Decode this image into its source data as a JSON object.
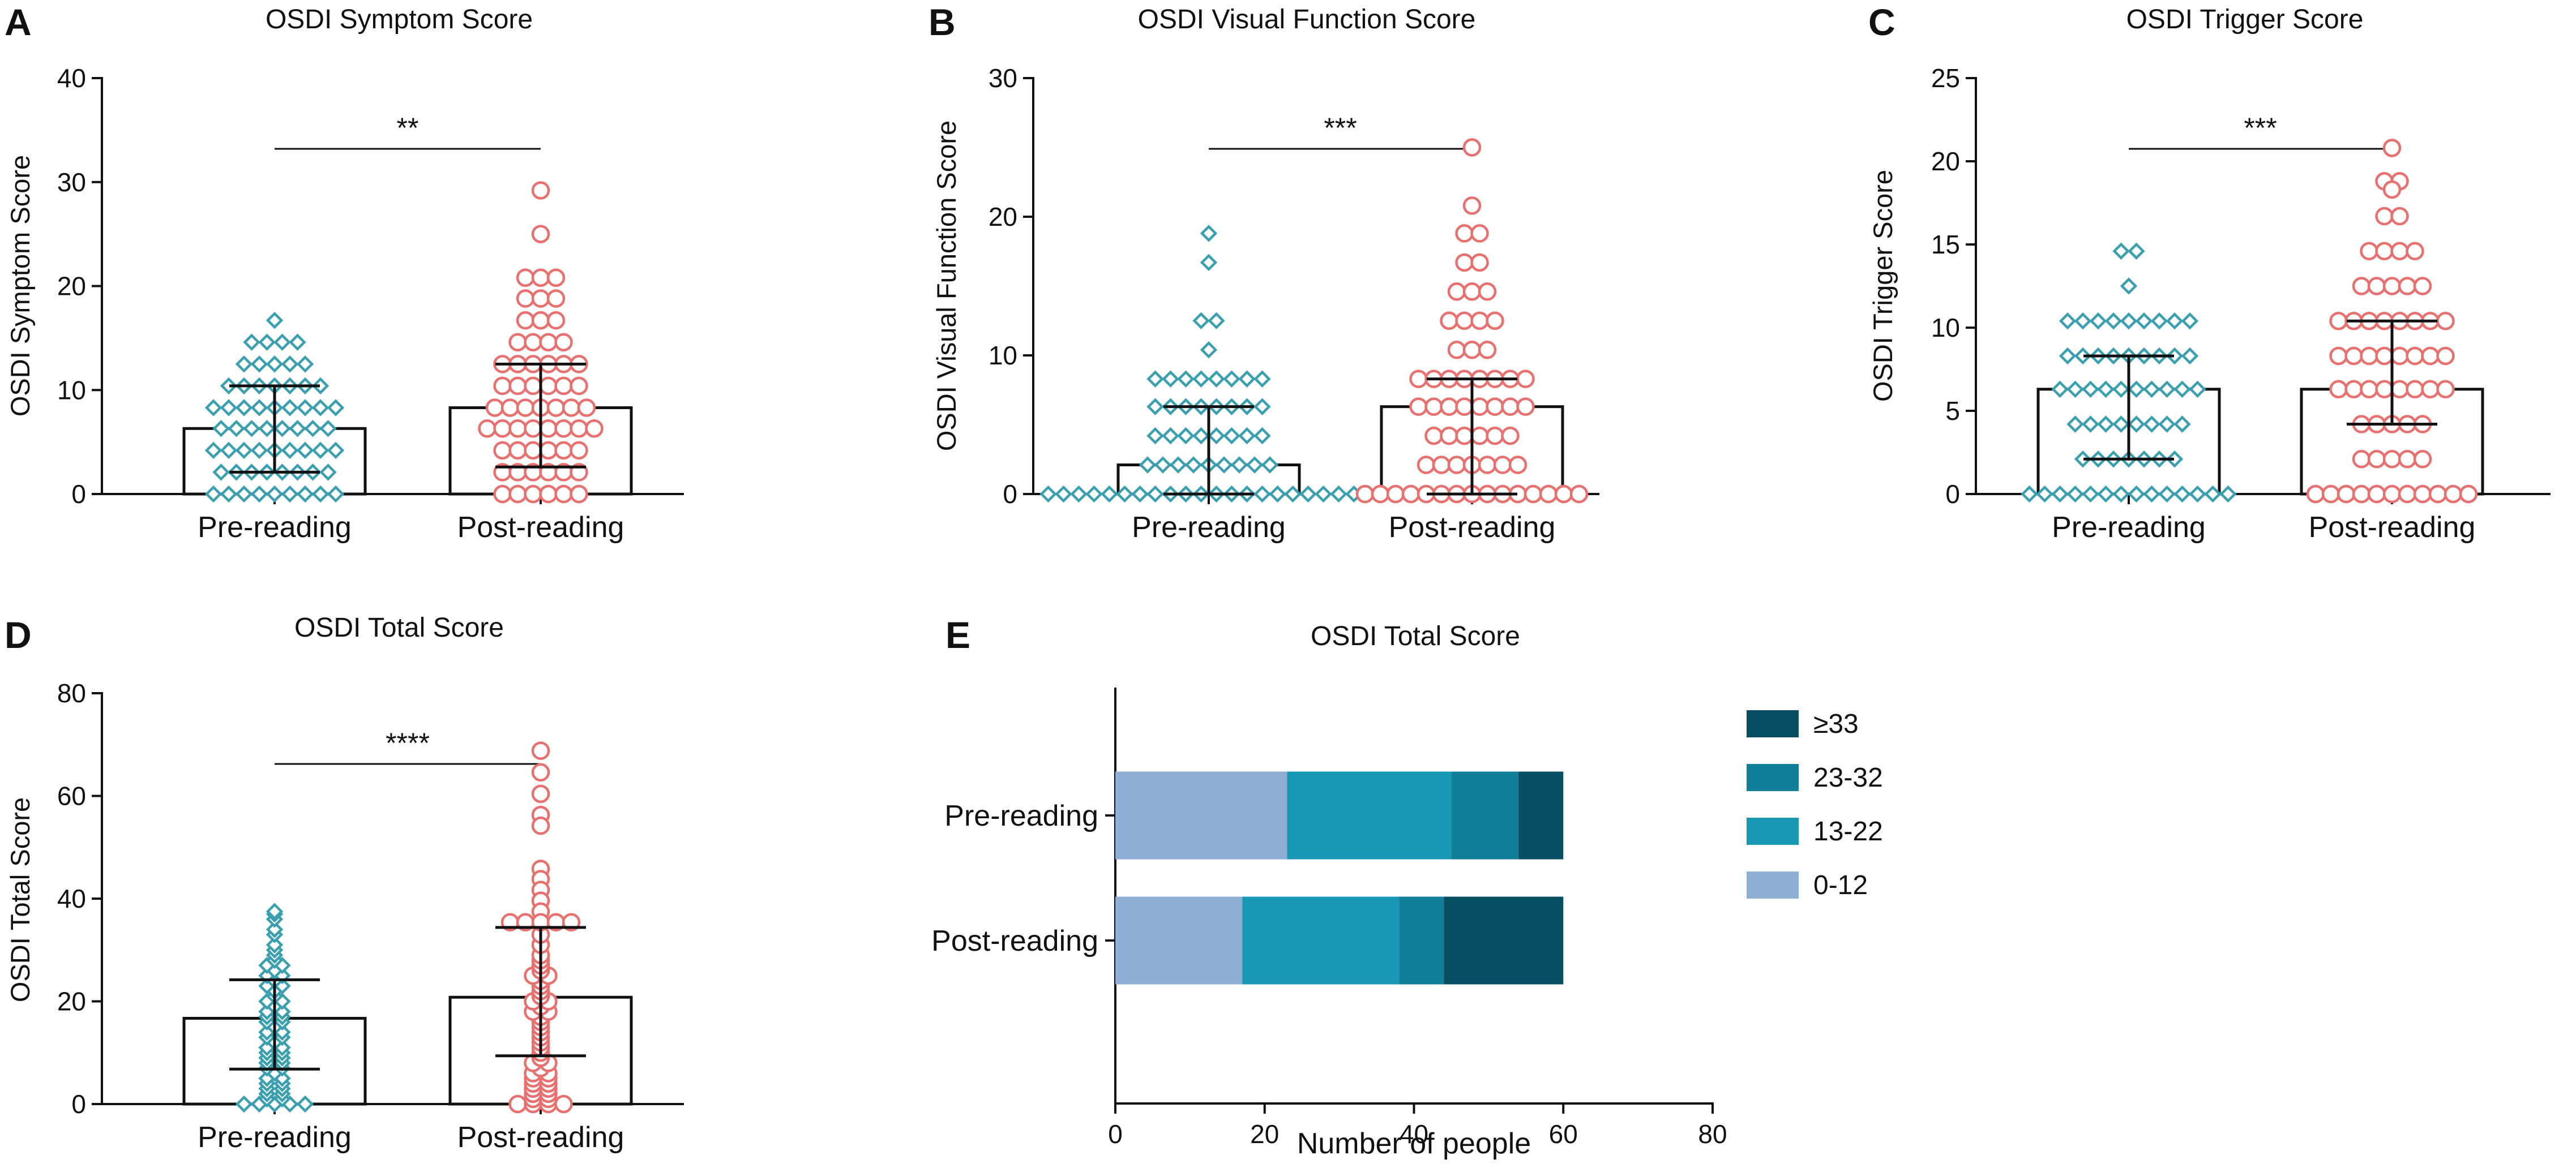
{
  "colors": {
    "pre": "#3aa0b0",
    "post": "#e8706f",
    "axis": "#111111",
    "band_0_12": "#8eaed4",
    "band_13_22": "#1898b5",
    "band_23_32": "#127f98",
    "band_33": "#064f62"
  },
  "panels": [
    {
      "letter": "A",
      "title": "OSDI Symptom Score",
      "ylabel": "OSDI Symptom Score",
      "significance": "**"
    },
    {
      "letter": "B",
      "title": "OSDI Visual Function Score",
      "ylabel": "OSDI Visual Function Score",
      "significance": "***"
    },
    {
      "letter": "C",
      "title": "OSDI Trigger Score",
      "ylabel": "OSDI Trigger Score",
      "significance": "***"
    },
    {
      "letter": "D",
      "title": "OSDI Total Score",
      "ylabel": "OSDI Total Score",
      "significance": "****"
    },
    {
      "letter": "E",
      "title": "OSDI Total Score",
      "xlabel": "Number of people"
    }
  ],
  "chart_data": [
    {
      "type": "bar",
      "subtype": "scatter-dot-bar with median and interquartile range",
      "title": "OSDI Symptom Score",
      "ylabel": "OSDI Symptom Score",
      "ylim": [
        0,
        40
      ],
      "yticks": [
        "0",
        "10",
        "20",
        "30",
        "40"
      ],
      "categories": [
        "Pre-reading",
        "Post-reading"
      ],
      "significance": "**",
      "series": [
        {
          "name": "Pre-reading",
          "marker": "diamond",
          "median": 6.3,
          "q1": 2.1,
          "q3": 10.4,
          "points": [
            16.7,
            14.6,
            14.6,
            14.6,
            14.6,
            12.5,
            12.5,
            12.5,
            12.5,
            12.5,
            10.4,
            10.4,
            10.4,
            10.4,
            10.4,
            10.4,
            10.4,
            8.3,
            8.3,
            8.3,
            8.3,
            8.3,
            8.3,
            8.3,
            8.3,
            8.3,
            6.3,
            6.3,
            6.3,
            6.3,
            6.3,
            6.3,
            6.3,
            6.3,
            4.2,
            4.2,
            4.2,
            4.2,
            4.2,
            4.2,
            4.2,
            4.2,
            4.2,
            2.1,
            2.1,
            2.1,
            2.1,
            2.1,
            2.1,
            2.1,
            2.1,
            0,
            0,
            0,
            0,
            0,
            0,
            0,
            0,
            0
          ]
        },
        {
          "name": "Post-reading",
          "marker": "circle",
          "median": 8.3,
          "q1": 2.6,
          "q3": 12.5,
          "points": [
            29.2,
            25,
            20.8,
            20.8,
            20.8,
            18.8,
            18.8,
            18.8,
            16.7,
            16.7,
            16.7,
            14.6,
            14.6,
            14.6,
            14.6,
            12.5,
            12.5,
            12.5,
            12.5,
            12.5,
            12.5,
            10.4,
            10.4,
            10.4,
            10.4,
            10.4,
            10.4,
            8.3,
            8.3,
            8.3,
            8.3,
            8.3,
            8.3,
            8.3,
            6.3,
            6.3,
            6.3,
            6.3,
            6.3,
            6.3,
            6.3,
            6.3,
            4.2,
            4.2,
            4.2,
            4.2,
            4.2,
            4.2,
            2.1,
            2.1,
            2.1,
            2.1,
            2.1,
            2.1,
            0,
            0,
            0,
            0,
            0,
            0
          ]
        }
      ]
    },
    {
      "type": "bar",
      "subtype": "scatter-dot-bar with median and interquartile range",
      "title": "OSDI Visual Function Score",
      "ylabel": "OSDI Visual Function Score",
      "ylim": [
        0,
        30
      ],
      "yticks": [
        "0",
        "10",
        "20",
        "30"
      ],
      "categories": [
        "Pre-reading",
        "Post-reading"
      ],
      "significance": "***",
      "series": [
        {
          "name": "Pre-reading",
          "marker": "diamond",
          "median": 2.1,
          "q1": 0,
          "q3": 6.3,
          "points": [
            18.8,
            16.7,
            12.5,
            12.5,
            10.4,
            8.3,
            8.3,
            8.3,
            8.3,
            8.3,
            8.3,
            8.3,
            8.3,
            6.3,
            6.3,
            6.3,
            6.3,
            6.3,
            6.3,
            6.3,
            6.3,
            4.2,
            4.2,
            4.2,
            4.2,
            4.2,
            4.2,
            4.2,
            4.2,
            2.1,
            2.1,
            2.1,
            2.1,
            2.1,
            2.1,
            2.1,
            2.1,
            2.1,
            0,
            0,
            0,
            0,
            0,
            0,
            0,
            0,
            0,
            0,
            0,
            0,
            0,
            0,
            0,
            0,
            0,
            0,
            0,
            0,
            0,
            0
          ]
        },
        {
          "name": "Post-reading",
          "marker": "circle",
          "median": 6.3,
          "q1": 0,
          "q3": 8.3,
          "points": [
            25,
            20.8,
            18.8,
            18.8,
            16.7,
            16.7,
            14.6,
            14.6,
            14.6,
            12.5,
            12.5,
            12.5,
            12.5,
            10.4,
            10.4,
            10.4,
            8.3,
            8.3,
            8.3,
            8.3,
            8.3,
            8.3,
            8.3,
            8.3,
            6.3,
            6.3,
            6.3,
            6.3,
            6.3,
            6.3,
            6.3,
            6.3,
            4.2,
            4.2,
            4.2,
            4.2,
            4.2,
            4.2,
            2.1,
            2.1,
            2.1,
            2.1,
            2.1,
            2.1,
            2.1,
            0,
            0,
            0,
            0,
            0,
            0,
            0,
            0,
            0,
            0,
            0,
            0,
            0,
            0,
            0
          ]
        }
      ]
    },
    {
      "type": "bar",
      "subtype": "scatter-dot-bar with median and interquartile range",
      "title": "OSDI Trigger Score",
      "ylabel": "OSDI Trigger Score",
      "ylim": [
        0,
        25
      ],
      "yticks": [
        "0",
        "5",
        "10",
        "15",
        "20",
        "25"
      ],
      "categories": [
        "Pre-reading",
        "Post-reading"
      ],
      "significance": "***",
      "series": [
        {
          "name": "Pre-reading",
          "marker": "diamond",
          "median": 6.3,
          "q1": 2.1,
          "q3": 8.3,
          "points": [
            14.6,
            14.6,
            12.5,
            10.4,
            10.4,
            10.4,
            10.4,
            10.4,
            10.4,
            10.4,
            10.4,
            10.4,
            8.3,
            8.3,
            8.3,
            8.3,
            8.3,
            8.3,
            8.3,
            8.3,
            8.3,
            6.3,
            6.3,
            6.3,
            6.3,
            6.3,
            6.3,
            6.3,
            6.3,
            6.3,
            6.3,
            4.2,
            4.2,
            4.2,
            4.2,
            4.2,
            4.2,
            4.2,
            4.2,
            2.1,
            2.1,
            2.1,
            2.1,
            2.1,
            2.1,
            2.1,
            0,
            0,
            0,
            0,
            0,
            0,
            0,
            0,
            0,
            0,
            0,
            0,
            0,
            0
          ]
        },
        {
          "name": "Post-reading",
          "marker": "circle",
          "median": 6.3,
          "q1": 4.2,
          "q3": 10.4,
          "points": [
            20.8,
            18.8,
            18.8,
            18.3,
            16.7,
            16.7,
            14.6,
            14.6,
            14.6,
            14.6,
            12.5,
            12.5,
            12.5,
            12.5,
            12.5,
            10.4,
            10.4,
            10.4,
            10.4,
            10.4,
            10.4,
            10.4,
            10.4,
            8.3,
            8.3,
            8.3,
            8.3,
            8.3,
            8.3,
            8.3,
            8.3,
            6.3,
            6.3,
            6.3,
            6.3,
            6.3,
            6.3,
            6.3,
            6.3,
            4.2,
            4.2,
            4.2,
            4.2,
            4.2,
            2.1,
            2.1,
            2.1,
            2.1,
            2.1,
            0,
            0,
            0,
            0,
            0,
            0,
            0,
            0,
            0,
            0,
            0
          ]
        }
      ]
    },
    {
      "type": "bar",
      "subtype": "scatter-dot-bar with median and interquartile range",
      "title": "OSDI Total Score",
      "ylabel": "OSDI Total Score",
      "ylim": [
        0,
        80
      ],
      "yticks": [
        "0",
        "20",
        "40",
        "60",
        "80"
      ],
      "categories": [
        "Pre-reading",
        "Post-reading"
      ],
      "significance": "****",
      "series": [
        {
          "name": "Pre-reading",
          "marker": "diamond",
          "median": 16.7,
          "q1": 6.8,
          "q3": 24.2,
          "points": [
            37.5,
            37,
            36,
            34,
            33,
            31,
            30,
            29,
            28,
            27,
            27,
            26,
            25,
            25,
            24,
            23,
            23,
            22,
            21,
            20,
            20,
            19,
            18,
            18,
            17,
            17,
            16,
            16,
            15,
            14,
            14,
            13,
            13,
            12,
            11,
            11,
            10,
            10,
            9,
            9,
            8,
            8,
            7,
            7,
            6,
            5,
            5,
            4,
            4,
            3,
            3,
            2,
            2,
            1,
            1,
            0,
            0,
            0,
            0,
            0
          ]
        },
        {
          "name": "Post-reading",
          "marker": "circle",
          "median": 20.8,
          "q1": 9.4,
          "q3": 34.4,
          "points": [
            68.8,
            64.6,
            60.4,
            56.3,
            54.2,
            45.8,
            43.8,
            41.7,
            39.6,
            37.5,
            35.4,
            35.4,
            35.4,
            35.4,
            35.4,
            33,
            31,
            29,
            28,
            27,
            26,
            25,
            25,
            24,
            23,
            22,
            21,
            20,
            20,
            19,
            18,
            18,
            17,
            16,
            15,
            14,
            13,
            12,
            11,
            10,
            9,
            8,
            8,
            7,
            6,
            6,
            5,
            5,
            4,
            4,
            3,
            3,
            2,
            2,
            1,
            1,
            0,
            0,
            0,
            0
          ]
        }
      ]
    },
    {
      "type": "bar",
      "subtype": "horizontal stacked bar",
      "title": "OSDI Total Score",
      "xlabel": "Number of people",
      "xlim": [
        0,
        80
      ],
      "xticks": [
        "0",
        "20",
        "40",
        "60",
        "80"
      ],
      "categories": [
        "Pre-reading",
        "Post-reading"
      ],
      "series": [
        {
          "name": "0-12",
          "values": [
            23,
            17
          ]
        },
        {
          "name": "13-22",
          "values": [
            22,
            21
          ]
        },
        {
          "name": "23-32",
          "values": [
            9,
            6
          ]
        },
        {
          "name": "≥33",
          "values": [
            6,
            16
          ]
        }
      ],
      "legend": [
        "≥33",
        "23-32",
        "13-22",
        "0-12"
      ],
      "legend_position": "right"
    }
  ]
}
